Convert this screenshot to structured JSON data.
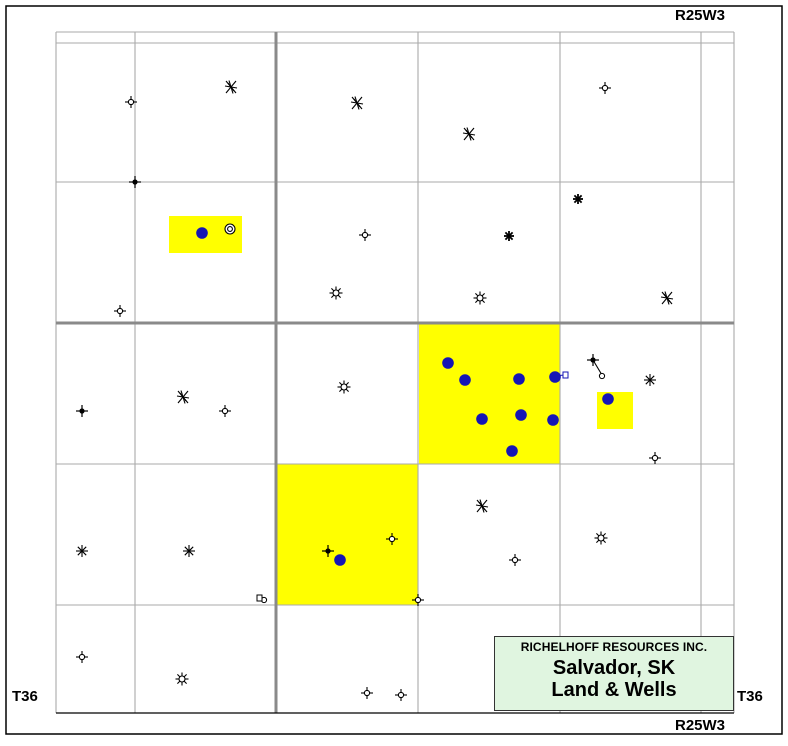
{
  "map": {
    "range_label_top": "R25W3",
    "range_label_bottom": "R25W3",
    "township_label_left": "T36",
    "township_label_right": "T36",
    "legend": {
      "company": "RICHELHOFF RESOURCES INC.",
      "place": "Salvador, SK",
      "subtitle": "Land & Wells"
    },
    "colors": {
      "land_highlight": "#ffff00",
      "well_dot": "#1515b5",
      "legend_background": "#e0f5e0",
      "grid_major": "#8a8a8a",
      "grid_minor": "#aaaaaa"
    }
  }
}
